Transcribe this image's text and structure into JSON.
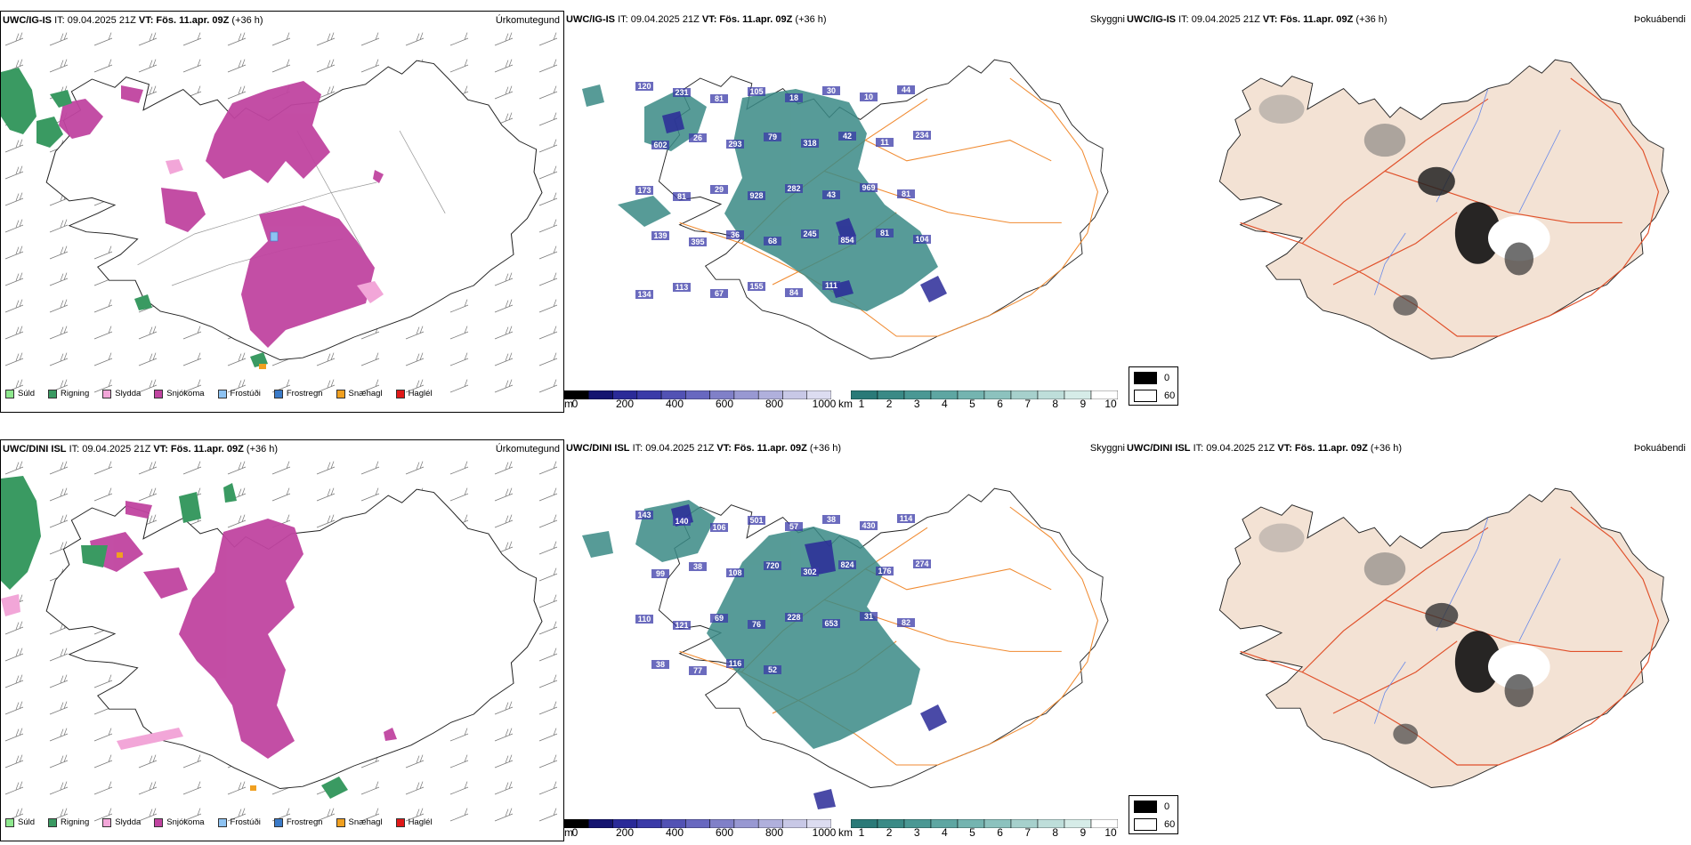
{
  "rows": [
    {
      "model": "UWC/IG-IS",
      "init": "IT: 09.04.2025 21Z",
      "valid_label": "VT:",
      "valid": "Fös. 11.apr. 09Z",
      "lead": "(+36 h)"
    },
    {
      "model": "UWC/DINI ISL",
      "init": "IT: 09.04.2025 21Z",
      "valid_label": "VT:",
      "valid": "Fös. 11.apr. 09Z",
      "lead": "(+36 h)"
    }
  ],
  "panel_titles": {
    "precip_type": "Úrkomutegund",
    "cloud_base": "Skyggni",
    "fog": "Þokuábendi"
  },
  "precip_legend": [
    {
      "label": "Súld",
      "color": "#8ee88e"
    },
    {
      "label": "Rigning",
      "color": "#3a9a62"
    },
    {
      "label": "Slydda",
      "color": "#f2a6d8"
    },
    {
      "label": "Snjókoma",
      "color": "#c044a0"
    },
    {
      "label": "Frostúði",
      "color": "#8ec3f2"
    },
    {
      "label": "Frostregn",
      "color": "#3a7ac8"
    },
    {
      "label": "Snæhagl",
      "color": "#f0a020"
    },
    {
      "label": "Haglél",
      "color": "#e01818"
    }
  ],
  "ceiling_bar": {
    "unit": "m",
    "ticks": [
      "0",
      "200",
      "400",
      "600",
      "800",
      "1000"
    ],
    "colors": [
      "#000000",
      "#141470",
      "#2a2a98",
      "#3a3aa8",
      "#5252b4",
      "#6868c0",
      "#8080c8",
      "#9898d2",
      "#b0b0dc",
      "#c8c8e6",
      "#dcdcf0"
    ]
  },
  "visibility_bar": {
    "unit": "km",
    "ticks": [
      "1",
      "2",
      "3",
      "4",
      "5",
      "6",
      "7",
      "8",
      "9",
      "10"
    ],
    "colors": [
      "#2a7a78",
      "#3a8a86",
      "#4a9894",
      "#5ea6a2",
      "#74b4b0",
      "#8cc2be",
      "#a6d0cc",
      "#bededa",
      "#d6ece8",
      "#ffffff"
    ]
  },
  "fog_legend": [
    {
      "label": "0",
      "color": "#000000"
    },
    {
      "label": "60",
      "color": "#ffffff"
    }
  ],
  "ceiling_labels_top": [
    "120",
    "231",
    "81",
    "105",
    "18",
    "30",
    "10",
    "44",
    "602",
    "26",
    "293",
    "79",
    "318",
    "42",
    "11",
    "234",
    "173",
    "81",
    "29",
    "928",
    "282",
    "43",
    "969",
    "81",
    "139",
    "395",
    "36",
    "68",
    "245",
    "854",
    "81",
    "104",
    "134",
    "113",
    "67",
    "155",
    "84",
    "111"
  ],
  "ceiling_labels_bottom": [
    "143",
    "140",
    "106",
    "501",
    "57",
    "38",
    "430",
    "114",
    "99",
    "38",
    "108",
    "720",
    "302",
    "824",
    "176",
    "274",
    "110",
    "121",
    "69",
    "76",
    "228",
    "653",
    "31",
    "82",
    "38",
    "77",
    "116",
    "52"
  ],
  "map_colors": {
    "snow": "#c044a0",
    "rain": "#3a9a62",
    "sleet": "#f2a6d8",
    "land_fog": "#f3e2d4",
    "roads": "#f08a30",
    "roads_fog": "#e0502a",
    "rivers": "#6a8ae8",
    "coast": "#222222"
  }
}
